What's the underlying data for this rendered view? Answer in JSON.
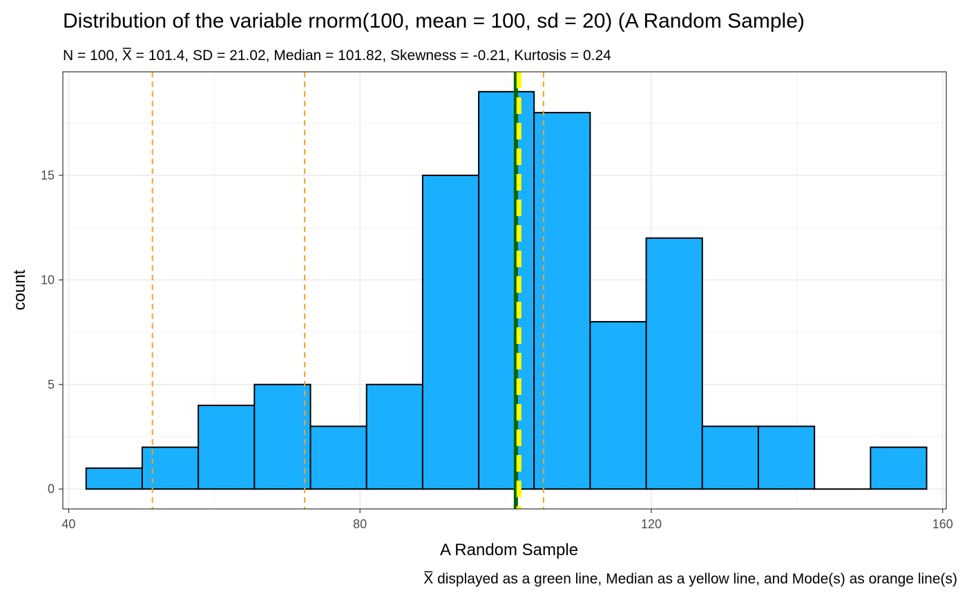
{
  "chart_data": {
    "type": "bar",
    "title": "Distribution of the variable rnorm(100, mean = 100, sd = 20) (A Random Sample)",
    "subtitle": {
      "prefix": "N = 100, ",
      "xbar": "X",
      "suffix": " = 101.4, SD = 21.02, Median = 101.82, Skewness = -0.21, Kurtosis = 0.24"
    },
    "xlabel": "A Random Sample",
    "ylabel": "count",
    "caption": {
      "xbar": "X",
      "text": " displayed as a green line, Median as a yellow line, and Mode(s) as orange line(s)"
    },
    "xlim": [
      39.2,
      160.5
    ],
    "ylim": [
      -0.95,
      19.95
    ],
    "x_ticks": [
      40,
      80,
      120,
      160
    ],
    "y_ticks": [
      0,
      5,
      10,
      15
    ],
    "grid": true,
    "bins": [
      {
        "x0": 42.4,
        "x1": 50.1,
        "count": 1
      },
      {
        "x0": 50.1,
        "x1": 57.8,
        "count": 2
      },
      {
        "x0": 57.8,
        "x1": 65.5,
        "count": 4
      },
      {
        "x0": 65.5,
        "x1": 73.2,
        "count": 5
      },
      {
        "x0": 73.2,
        "x1": 80.9,
        "count": 3
      },
      {
        "x0": 80.9,
        "x1": 88.6,
        "count": 5
      },
      {
        "x0": 88.6,
        "x1": 96.3,
        "count": 15
      },
      {
        "x0": 96.3,
        "x1": 103.9,
        "count": 19
      },
      {
        "x0": 103.9,
        "x1": 111.6,
        "count": 18
      },
      {
        "x0": 111.6,
        "x1": 119.3,
        "count": 8
      },
      {
        "x0": 119.3,
        "x1": 127.0,
        "count": 12
      },
      {
        "x0": 127.0,
        "x1": 134.7,
        "count": 3
      },
      {
        "x0": 134.7,
        "x1": 142.4,
        "count": 3
      },
      {
        "x0": 142.4,
        "x1": 150.1,
        "count": 0
      },
      {
        "x0": 150.1,
        "x1": 157.8,
        "count": 2
      }
    ],
    "reference_lines": {
      "mean": 101.4,
      "median": 101.82,
      "modes": [
        51.5,
        72.4,
        105.2
      ]
    },
    "colors": {
      "bar_fill": "#1AB0FF",
      "bar_stroke": "#000000",
      "mean_line": "#006400",
      "median_line": "#FFFF00",
      "mode_line": "#FF9F1C",
      "grid_major": "#EBEBEB",
      "panel_border": "#333333"
    }
  }
}
